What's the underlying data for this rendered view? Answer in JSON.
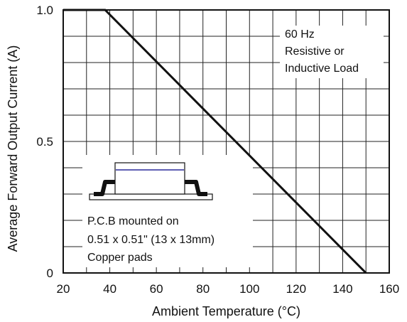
{
  "chart_data": {
    "type": "line",
    "xlabel": "Ambient Temperature (°C)",
    "ylabel": "Average Forward Output Current (A)",
    "xlim": [
      20,
      160
    ],
    "ylim": [
      0,
      1.0
    ],
    "x_ticks": [
      "20",
      "40",
      "60",
      "80",
      "100",
      "120",
      "140",
      "160"
    ],
    "y_ticks": [
      {
        "value": 0,
        "label": "0"
      },
      {
        "value": 0.5,
        "label": "0.5"
      },
      {
        "value": 1.0,
        "label": "1.0"
      }
    ],
    "grid": true,
    "series": [
      {
        "x": [
          20,
          38,
          150
        ],
        "y": [
          1.0,
          1.0,
          0
        ]
      }
    ],
    "annotations": {
      "load_lines": [
        "60 Hz",
        "Resistive or",
        "Inductive Load"
      ],
      "pcb_lines": [
        "P.C.B mounted on",
        "0.51 x 0.51\" (13 x 13mm)",
        "Copper pads"
      ]
    },
    "colors": {
      "line": "#111111",
      "grid": "#222222",
      "package_stripe": "#2a2a9a"
    }
  }
}
